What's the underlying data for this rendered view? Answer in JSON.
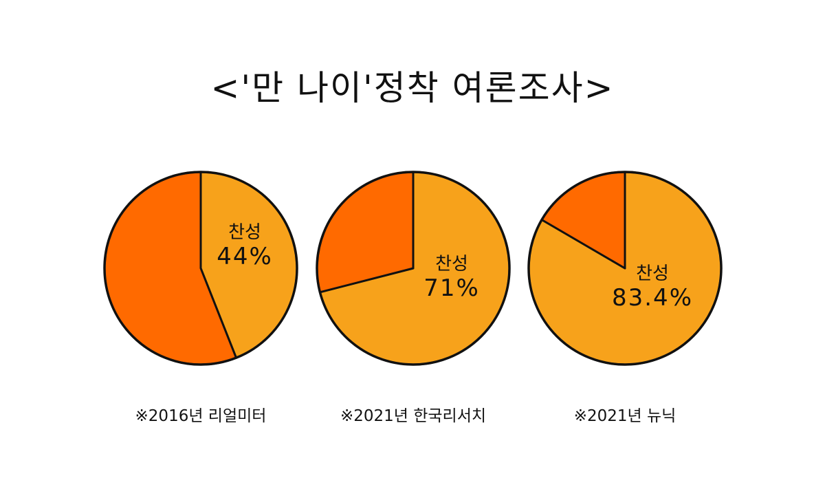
{
  "title": "<'만 나이'정착 여론조사>",
  "colors": {
    "agree": "#F7A21B",
    "other": "#FF6A00",
    "outline": "#111111"
  },
  "chart_data": [
    {
      "type": "pie",
      "slices": [
        {
          "label": "찬성",
          "value": 44,
          "display": "44%",
          "color": "#F7A21B"
        },
        {
          "label": "",
          "value": 56,
          "color": "#FF6A00"
        }
      ],
      "caption": "※2016년 리얼미터"
    },
    {
      "type": "pie",
      "slices": [
        {
          "label": "찬성",
          "value": 71,
          "display": "71%",
          "color": "#F7A21B"
        },
        {
          "label": "",
          "value": 29,
          "color": "#FF6A00"
        }
      ],
      "caption": "※2021년 한국리서치"
    },
    {
      "type": "pie",
      "slices": [
        {
          "label": "찬성",
          "value": 83.4,
          "display": "83.4%",
          "color": "#F7A21B"
        },
        {
          "label": "",
          "value": 16.6,
          "color": "#FF6A00"
        }
      ],
      "caption": "※2021년 뉴닉"
    }
  ]
}
